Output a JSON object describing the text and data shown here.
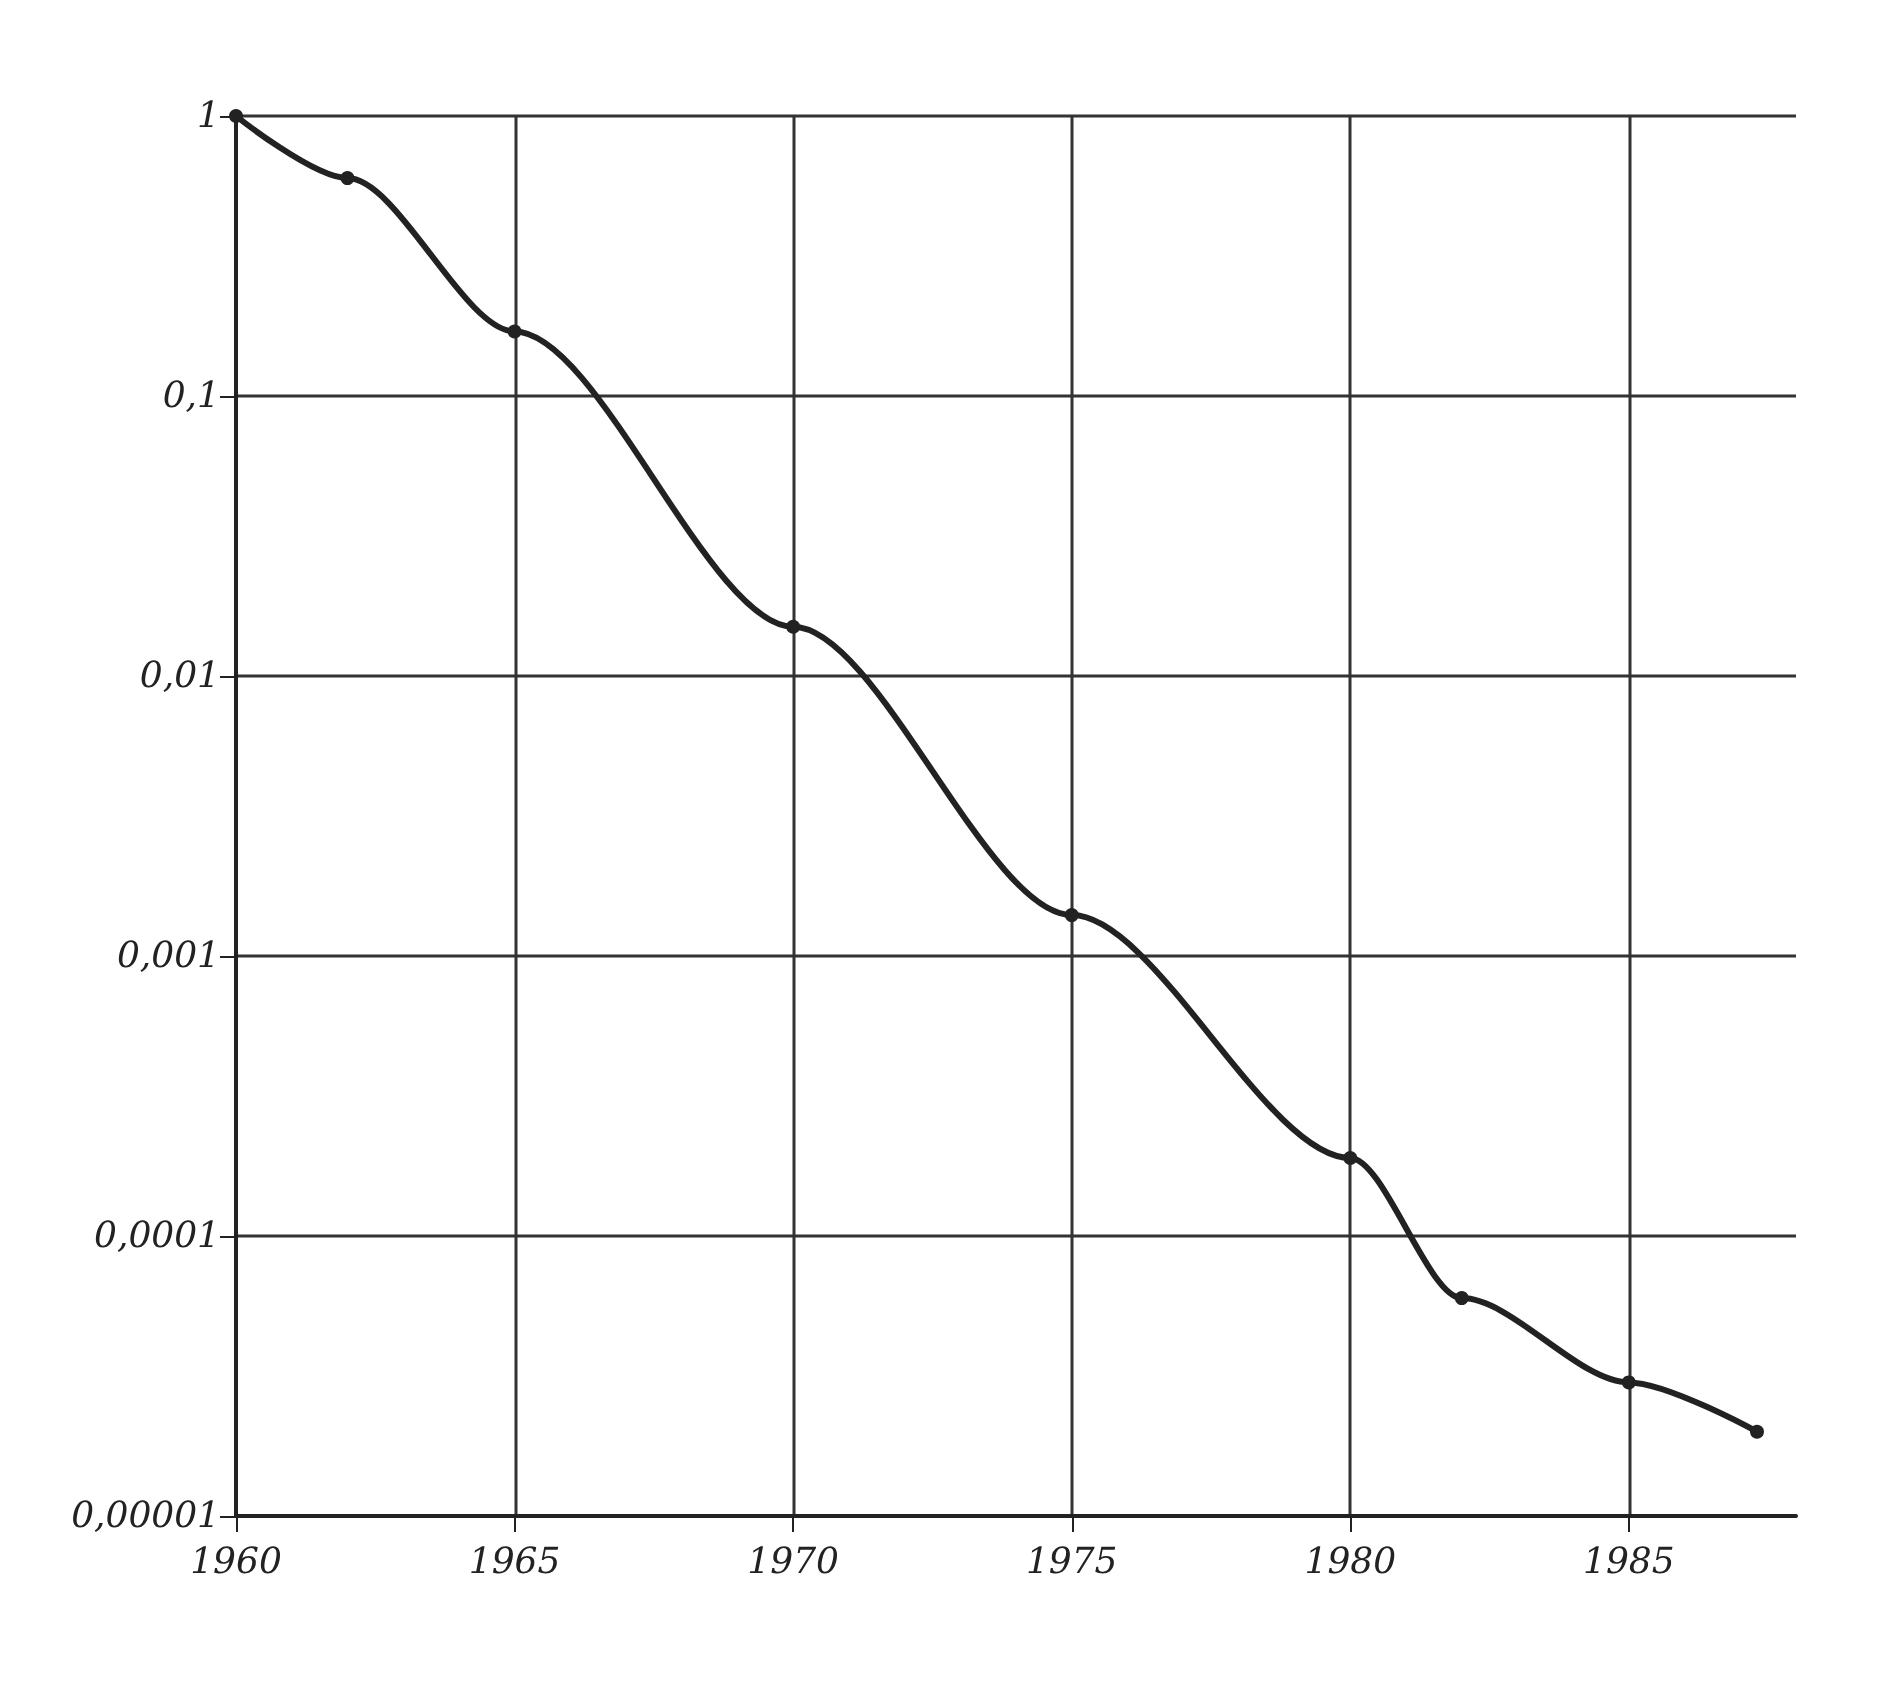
{
  "chart_data": {
    "type": "line",
    "log": "y",
    "grid": true,
    "marker": "circle",
    "line_style": "solid",
    "x": [
      1960,
      1962,
      1965,
      1970,
      1975,
      1980,
      1982,
      1985,
      1987.3
    ],
    "series": [
      {
        "color": "#222222",
        "values": [
          1,
          0.6,
          0.17,
          0.015,
          0.0014,
          0.00019,
          6e-05,
          3e-05,
          2e-05
        ]
      }
    ],
    "xlim": [
      1960,
      1988
    ],
    "xticks": [
      {
        "value": 1960,
        "label": "1960"
      },
      {
        "value": 1965,
        "label": "1965"
      },
      {
        "value": 1970,
        "label": "1970"
      },
      {
        "value": 1975,
        "label": "1975"
      },
      {
        "value": 1980,
        "label": "1980"
      },
      {
        "value": 1985,
        "label": "1985"
      }
    ],
    "ylim": [
      1e-05,
      1
    ],
    "yticks": [
      {
        "value": 1e-05,
        "label": "0,00001"
      },
      {
        "value": 0.0001,
        "label": "0,0001"
      },
      {
        "value": 0.001,
        "label": "0,001"
      },
      {
        "value": 0.01,
        "label": "0,01"
      },
      {
        "value": 0.1,
        "label": "0,1"
      },
      {
        "value": 1,
        "label": "1"
      }
    ]
  }
}
